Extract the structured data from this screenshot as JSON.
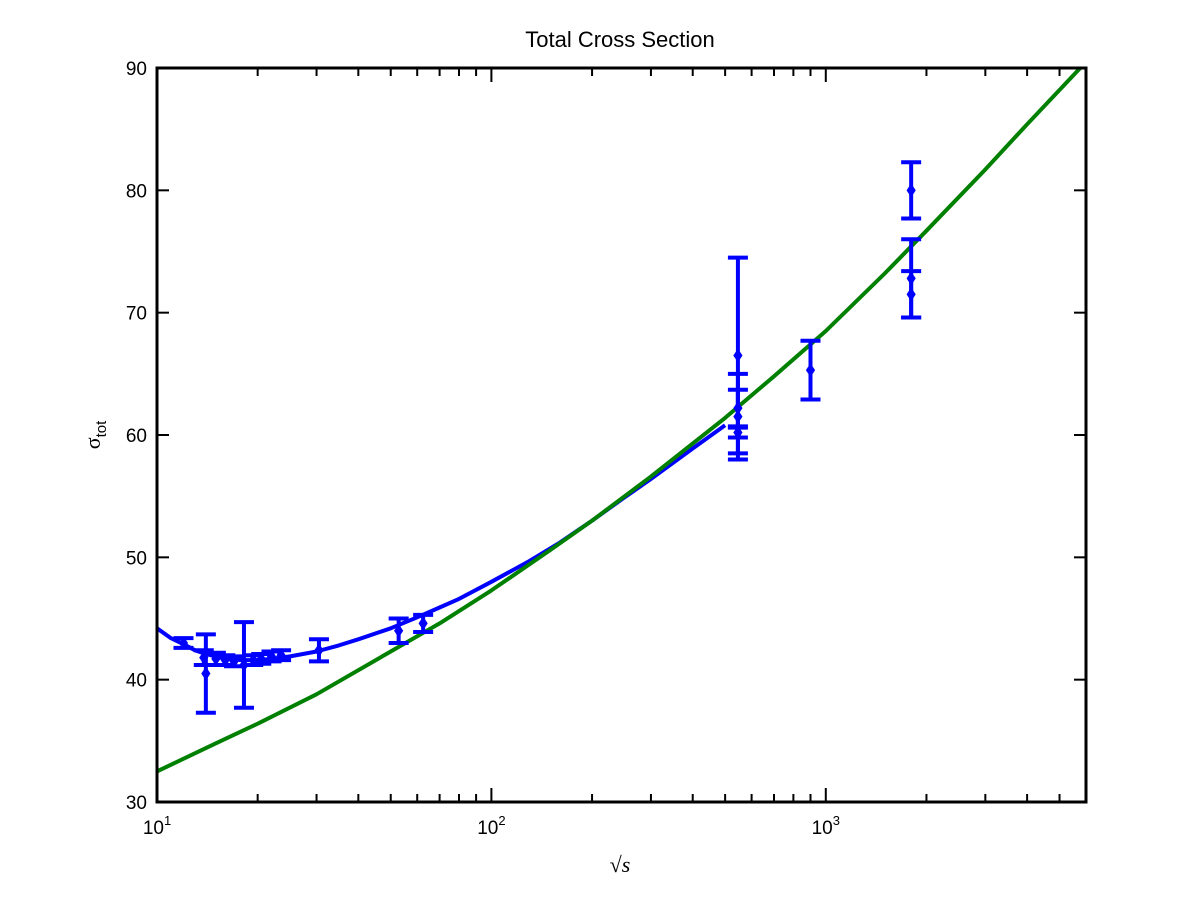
{
  "chart_data": {
    "type": "scatter",
    "title": "Total Cross Section",
    "xlabel": "√s",
    "ylabel": {
      "base": "σ",
      "subscript": "tot"
    },
    "xscale": "log",
    "xlim": [
      10,
      6000
    ],
    "ylim": [
      30,
      90
    ],
    "xticks": [
      {
        "value": 10,
        "base": "10",
        "exp": "1"
      },
      {
        "value": 100,
        "base": "10",
        "exp": "2"
      },
      {
        "value": 1000,
        "base": "10",
        "exp": "3"
      }
    ],
    "yticks": [
      30,
      40,
      50,
      60,
      70,
      80,
      90
    ],
    "grid": false,
    "colors": {
      "data": "#0000ff",
      "fit_low": "#0000ff",
      "fit_high": "#008000"
    },
    "series": [
      {
        "kind": "errorbar",
        "color": "#0000ff",
        "points": [
          {
            "x": 12.0,
            "y": 43.0,
            "err": 0.4
          },
          {
            "x": 13.8,
            "y": 41.8,
            "err": 0.6
          },
          {
            "x": 14.0,
            "y": 40.5,
            "err": 3.2
          },
          {
            "x": 15.0,
            "y": 41.7,
            "err": 0.5
          },
          {
            "x": 16.0,
            "y": 41.6,
            "err": 0.4
          },
          {
            "x": 17.0,
            "y": 41.5,
            "err": 0.4
          },
          {
            "x": 18.2,
            "y": 41.2,
            "err": 3.5
          },
          {
            "x": 19.4,
            "y": 41.6,
            "err": 0.4
          },
          {
            "x": 20.5,
            "y": 41.7,
            "err": 0.4
          },
          {
            "x": 22.0,
            "y": 41.9,
            "err": 0.4
          },
          {
            "x": 23.5,
            "y": 42.0,
            "err": 0.4
          },
          {
            "x": 30.5,
            "y": 42.4,
            "err": 0.9
          },
          {
            "x": 52.8,
            "y": 44.0,
            "err": 1.0
          },
          {
            "x": 62.5,
            "y": 44.6,
            "err": 0.7
          },
          {
            "x": 546,
            "y": 66.5,
            "err": 8.0
          },
          {
            "x": 546,
            "y": 62.2,
            "err": 1.5
          },
          {
            "x": 546,
            "y": 61.5,
            "err": 3.5
          },
          {
            "x": 546,
            "y": 60.2,
            "err": 0.4
          },
          {
            "x": 900,
            "y": 65.3,
            "err": 2.4
          },
          {
            "x": 1800,
            "y": 80.0,
            "err": 2.3
          },
          {
            "x": 1800,
            "y": 72.8,
            "err": 3.2
          },
          {
            "x": 1800,
            "y": 71.5,
            "err": 1.9
          }
        ]
      },
      {
        "kind": "line",
        "color": "#0000ff",
        "x": [
          10,
          11,
          12,
          13,
          14,
          15,
          16,
          18,
          20,
          22,
          25,
          30,
          35,
          40,
          50,
          60,
          70,
          80,
          100,
          130,
          160,
          200,
          250,
          300,
          400,
          500
        ],
        "y": [
          44.2,
          43.4,
          42.9,
          42.4,
          42.1,
          41.9,
          41.7,
          41.6,
          41.6,
          41.7,
          41.9,
          42.3,
          42.8,
          43.3,
          44.2,
          45.1,
          45.9,
          46.6,
          48.0,
          49.7,
          51.2,
          53.0,
          54.9,
          56.4,
          58.9,
          60.8
        ]
      },
      {
        "kind": "line",
        "color": "#008000",
        "x": [
          10,
          15,
          20,
          30,
          50,
          70,
          100,
          150,
          200,
          300,
          500,
          700,
          1000,
          1500,
          2000,
          3000,
          4000,
          6000
        ],
        "y": [
          32.5,
          34.8,
          36.4,
          38.8,
          42.3,
          44.6,
          47.3,
          50.6,
          53.0,
          56.6,
          61.4,
          64.8,
          68.5,
          73.2,
          76.7,
          81.7,
          85.4,
          90.5
        ]
      }
    ]
  }
}
